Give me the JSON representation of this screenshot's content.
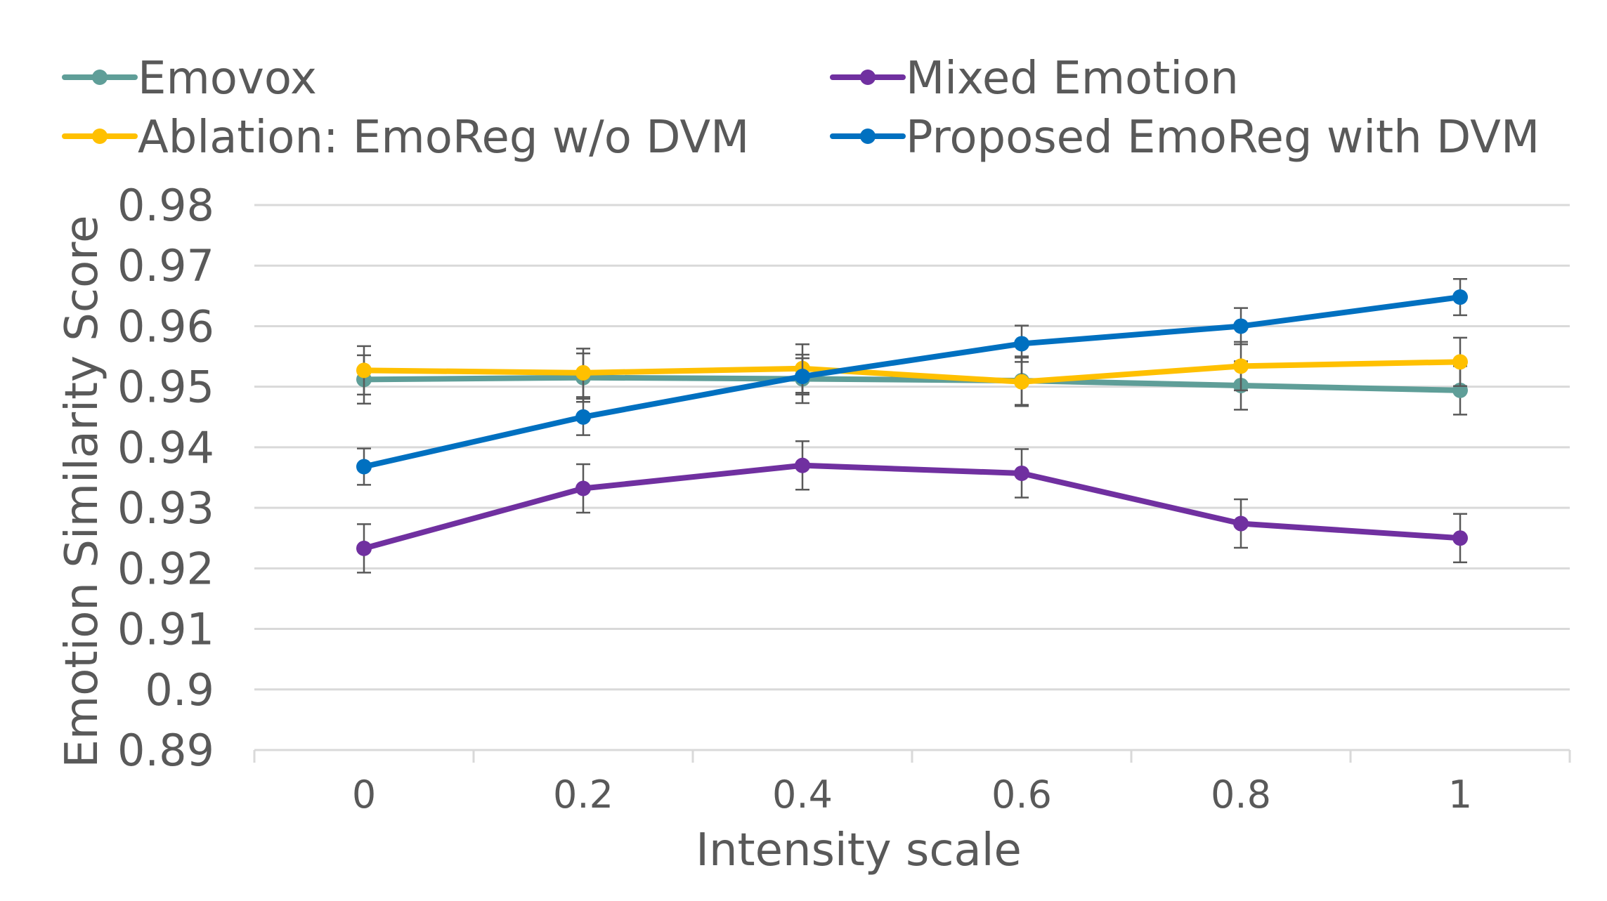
{
  "chart_data": {
    "type": "line",
    "title": "",
    "xlabel": "Intensity scale",
    "ylabel": "Emotion Similarity Score",
    "x": [
      "0",
      "0.2",
      "0.4",
      "0.6",
      "0.8",
      "1"
    ],
    "ylim": [
      0.89,
      0.98
    ],
    "yticks": [
      "0.89",
      "0.9",
      "0.91",
      "0.92",
      "0.93",
      "0.94",
      "0.95",
      "0.96",
      "0.97",
      "0.98"
    ],
    "ytick_values": [
      0.89,
      0.9,
      0.91,
      0.92,
      0.93,
      0.94,
      0.95,
      0.96,
      0.97,
      0.98
    ],
    "grid": true,
    "legend_position": "top",
    "series": [
      {
        "name": "Emovox",
        "color": "#5f9e98",
        "values": [
          0.9512,
          0.9515,
          0.9513,
          0.951,
          0.9502,
          0.9494
        ],
        "errors": [
          0.004,
          0.004,
          0.004,
          0.004,
          0.004,
          0.004
        ]
      },
      {
        "name": "Mixed Emotion",
        "color": "#7030a0",
        "values": [
          0.9233,
          0.9332,
          0.937,
          0.9357,
          0.9274,
          0.925
        ],
        "errors": [
          0.004,
          0.004,
          0.004,
          0.004,
          0.004,
          0.004
        ]
      },
      {
        "name": "Ablation: EmoReg w/o DVM",
        "color": "#ffc000",
        "values": [
          0.9527,
          0.9523,
          0.953,
          0.9508,
          0.9534,
          0.9541
        ],
        "errors": [
          0.004,
          0.004,
          0.004,
          0.004,
          0.004,
          0.004
        ]
      },
      {
        "name": "Proposed EmoReg with DVM",
        "color": "#0070c0",
        "values": [
          0.9368,
          0.945,
          0.9517,
          0.9571,
          0.96,
          0.9648
        ],
        "errors": [
          0.003,
          0.003,
          0.003,
          0.003,
          0.003,
          0.003
        ]
      }
    ]
  }
}
